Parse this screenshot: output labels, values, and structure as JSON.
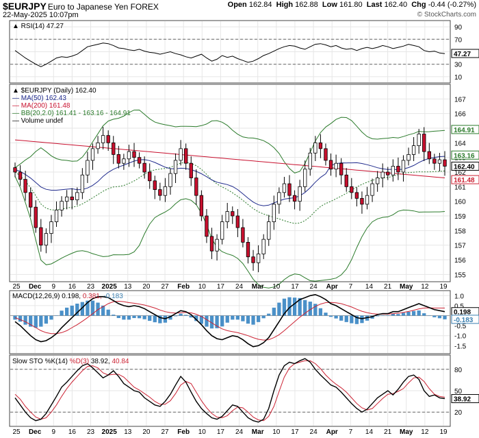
{
  "header": {
    "symbol": "$EURJPY",
    "name": "Euro to Japanese Yen FOREX",
    "datetime": "22-May-2025 10:07pm",
    "open_label": "Open",
    "open": "162.84",
    "high_label": "High",
    "high": "162.88",
    "low_label": "Low",
    "low": "161.80",
    "last_label": "Last",
    "last": "162.40",
    "chg_label": "Chg",
    "chg": "-0.44 (-0.27%)",
    "copyright": "© StockCharts.com"
  },
  "chart_data": [
    {
      "id": "rsi",
      "type": "line",
      "legend": "RSI(14) 47.27",
      "ylim": [
        0,
        100
      ],
      "yticks": [
        90,
        70,
        50,
        30,
        10
      ],
      "reference_lines": [
        70,
        30
      ],
      "last_value": 47.27,
      "series": [
        {
          "name": "RSI(14)",
          "color": "#000000",
          "values": [
            52,
            46,
            40,
            35,
            30,
            26,
            30,
            35,
            40,
            42,
            41,
            43,
            46,
            52,
            58,
            60,
            62,
            64,
            63,
            60,
            56,
            55,
            53,
            52,
            54,
            51,
            49,
            48,
            46,
            48,
            50,
            47,
            45,
            42,
            40,
            43,
            46,
            40,
            35,
            38,
            44,
            41,
            43,
            39,
            36,
            33,
            35,
            39,
            44,
            47,
            51,
            55,
            58,
            60,
            59,
            56,
            54,
            58,
            62,
            63,
            61,
            58,
            60,
            56,
            54,
            55,
            52,
            55,
            57,
            55,
            57,
            60,
            58,
            55,
            57,
            59,
            62,
            60,
            58,
            52,
            50,
            51,
            48,
            47
          ]
        }
      ]
    },
    {
      "id": "price",
      "type": "candlestick",
      "legend": [
        "$EURJPY (Daily) 162.40",
        "MA(50) 162.43",
        "MA(200) 161.48",
        "BB(20,2.0) 161.41 - 163.16 - 164.91",
        "Volume undef"
      ],
      "ylim": [
        154.5,
        168
      ],
      "yticks": [
        167,
        166,
        165,
        164,
        163,
        162,
        161,
        160,
        159,
        158,
        157,
        156,
        155
      ],
      "last_labels": [
        {
          "text": "164.91",
          "value": 164.91,
          "color": "#2a7a2a"
        },
        {
          "text": "163.16",
          "value": 163.16,
          "color": "#2a7a2a"
        },
        {
          "text": "162.40",
          "value": 162.4,
          "color": "#000000"
        },
        {
          "text": "161.48",
          "value": 161.48,
          "color": "#cc2233"
        }
      ],
      "closes": [
        162.0,
        161.5,
        160.6,
        159.6,
        158.2,
        157.0,
        157.8,
        158.6,
        159.4,
        160.0,
        160.3,
        160.1,
        160.6,
        161.8,
        162.8,
        163.6,
        164.0,
        164.5,
        164.0,
        163.2,
        162.6,
        162.9,
        163.4,
        163.0,
        162.6,
        162.0,
        161.4,
        160.8,
        160.4,
        161.0,
        161.9,
        162.8,
        163.6,
        162.6,
        161.6,
        160.4,
        159.0,
        157.6,
        156.6,
        157.4,
        158.6,
        159.3,
        159.0,
        158.2,
        157.2,
        156.2,
        155.8,
        156.4,
        157.4,
        158.6,
        159.8,
        160.6,
        161.2,
        160.4,
        160.0,
        161.0,
        162.2,
        163.3,
        164.0,
        163.6,
        162.8,
        162.2,
        162.6,
        161.8,
        161.0,
        160.6,
        160.2,
        159.8,
        160.4,
        161.2,
        161.6,
        162.0,
        161.8,
        162.4,
        162.0,
        162.8,
        163.2,
        163.8,
        164.6,
        163.4,
        162.9,
        162.6,
        162.84,
        162.4
      ]
    },
    {
      "id": "macd",
      "type": "line",
      "legend_parts": [
        {
          "text": "MACD(12,26,9) 0.198, ",
          "color": "#000000"
        },
        {
          "text": "0.381, ",
          "color": "#cc2233"
        },
        {
          "text": "-0.183",
          "color": "#3a7fb0"
        }
      ],
      "ylim": [
        -1.9,
        1.25
      ],
      "yticks": [
        1.0,
        0.5,
        0.0,
        -0.5,
        -1.0,
        -1.5
      ],
      "tick_labels": [
        "1.0",
        "0.5",
        "0.0",
        "-0.5",
        "-1.0",
        "-1.5"
      ],
      "last_labels": [
        {
          "text": "0.198",
          "value": 0.198,
          "color": "#000000"
        },
        {
          "text": "-0.183",
          "value": -0.183,
          "color": "#3a7fb0"
        }
      ],
      "series": [
        {
          "name": "MACD",
          "color": "#000000",
          "values": [
            -0.3,
            -0.5,
            -0.75,
            -1.0,
            -1.2,
            -1.3,
            -1.25,
            -1.1,
            -0.9,
            -0.6,
            -0.35,
            -0.1,
            0.15,
            0.4,
            0.65,
            0.85,
            0.95,
            0.95,
            0.9,
            0.75,
            0.6,
            0.5,
            0.45,
            0.5,
            0.45,
            0.35,
            0.2,
            0.05,
            -0.1,
            -0.15,
            -0.05,
            0.1,
            0.25,
            0.2,
            0.05,
            -0.2,
            -0.45,
            -0.75,
            -1.0,
            -1.15,
            -1.2,
            -1.1,
            -1.0,
            -1.05,
            -1.2,
            -1.4,
            -1.55,
            -1.5,
            -1.35,
            -1.1,
            -0.7,
            -0.3,
            0.1,
            0.4,
            0.6,
            0.8,
            0.9,
            1.0,
            1.05,
            0.95,
            0.8,
            0.6,
            0.5,
            0.35,
            0.2,
            0.05,
            -0.1,
            -0.15,
            -0.1,
            -0.05,
            0.05,
            0.1,
            0.1,
            0.2,
            0.2,
            0.3,
            0.4,
            0.5,
            0.6,
            0.5,
            0.4,
            0.3,
            0.25,
            0.198
          ]
        },
        {
          "name": "Signal",
          "color": "#cc2233",
          "values": [
            -0.1,
            -0.2,
            -0.3,
            -0.45,
            -0.6,
            -0.75,
            -0.85,
            -0.9,
            -0.9,
            -0.85,
            -0.75,
            -0.6,
            -0.45,
            -0.28,
            -0.1,
            0.1,
            0.3,
            0.45,
            0.6,
            0.7,
            0.72,
            0.7,
            0.65,
            0.62,
            0.58,
            0.53,
            0.46,
            0.38,
            0.28,
            0.2,
            0.15,
            0.13,
            0.15,
            0.16,
            0.14,
            0.07,
            -0.04,
            -0.2,
            -0.36,
            -0.52,
            -0.66,
            -0.75,
            -0.8,
            -0.85,
            -0.92,
            -1.0,
            -1.1,
            -1.18,
            -1.22,
            -1.2,
            -1.1,
            -0.95,
            -0.75,
            -0.52,
            -0.3,
            -0.08,
            0.12,
            0.3,
            0.46,
            0.58,
            0.65,
            0.66,
            0.64,
            0.6,
            0.52,
            0.43,
            0.32,
            0.22,
            0.15,
            0.1,
            0.08,
            0.08,
            0.08,
            0.1,
            0.12,
            0.16,
            0.21,
            0.27,
            0.34,
            0.38,
            0.39,
            0.38,
            0.38,
            0.381
          ]
        }
      ]
    },
    {
      "id": "sto",
      "type": "line",
      "legend_parts": [
        {
          "text": "Slow STO %K(14) ",
          "color": "#000000"
        },
        {
          "text": "%D(3) ",
          "color": "#cc2233"
        },
        {
          "text": "38.92, ",
          "color": "#000000"
        },
        {
          "text": "40.84",
          "color": "#cc2233"
        }
      ],
      "ylim": [
        0,
        100
      ],
      "yticks": [
        80,
        50,
        20
      ],
      "reference_lines": [
        80,
        20
      ],
      "last_labels": [
        {
          "text": "38.92",
          "value": 38.92,
          "color": "#000000"
        }
      ],
      "series": [
        {
          "name": "%K",
          "color": "#000000",
          "values": [
            40,
            30,
            20,
            12,
            8,
            10,
            18,
            30,
            42,
            55,
            62,
            70,
            78,
            85,
            88,
            82,
            75,
            68,
            72,
            78,
            70,
            60,
            55,
            50,
            48,
            40,
            35,
            30,
            28,
            35,
            45,
            58,
            70,
            62,
            48,
            35,
            25,
            18,
            12,
            10,
            14,
            22,
            30,
            28,
            20,
            12,
            8,
            6,
            10,
            25,
            50,
            72,
            85,
            90,
            88,
            92,
            95,
            90,
            80,
            72,
            65,
            58,
            55,
            48,
            40,
            32,
            25,
            20,
            24,
            32,
            40,
            45,
            50,
            44,
            52,
            62,
            70,
            72,
            66,
            50,
            42,
            44,
            40,
            38.92
          ]
        },
        {
          "name": "%D",
          "color": "#cc2233",
          "values": [
            45,
            38,
            28,
            20,
            13,
            10,
            12,
            20,
            30,
            42,
            53,
            62,
            70,
            78,
            84,
            85,
            82,
            75,
            72,
            73,
            73,
            69,
            62,
            55,
            51,
            46,
            41,
            35,
            31,
            31,
            36,
            46,
            58,
            63,
            60,
            48,
            36,
            26,
            18,
            13,
            12,
            15,
            22,
            27,
            26,
            20,
            13,
            9,
            8,
            14,
            28,
            49,
            69,
            82,
            88,
            90,
            92,
            92,
            88,
            81,
            72,
            65,
            59,
            54,
            48,
            40,
            32,
            26,
            23,
            25,
            32,
            39,
            45,
            46,
            49,
            53,
            61,
            68,
            69,
            63,
            53,
            45,
            42,
            40.84
          ]
        }
      ]
    }
  ],
  "x_axis": {
    "labels": [
      "25",
      "Dec",
      "9",
      "16",
      "23",
      "2025",
      "13",
      "20",
      "27",
      "Feb",
      "10",
      "17",
      "24",
      "Mar",
      "10",
      "17",
      "24",
      "Apr",
      "7",
      "14",
      "21",
      "May",
      "12",
      "19"
    ],
    "bold": [
      "Dec",
      "2025",
      "Feb",
      "Mar",
      "Apr",
      "May"
    ]
  },
  "colors": {
    "up": "#ffffff",
    "down": "#c8102e",
    "ma50": "#1f2a8c",
    "ma200": "#c8102e",
    "bb": "#2a7a2a",
    "histogram": "#4a90c8",
    "grid": "#e6e6e6"
  }
}
